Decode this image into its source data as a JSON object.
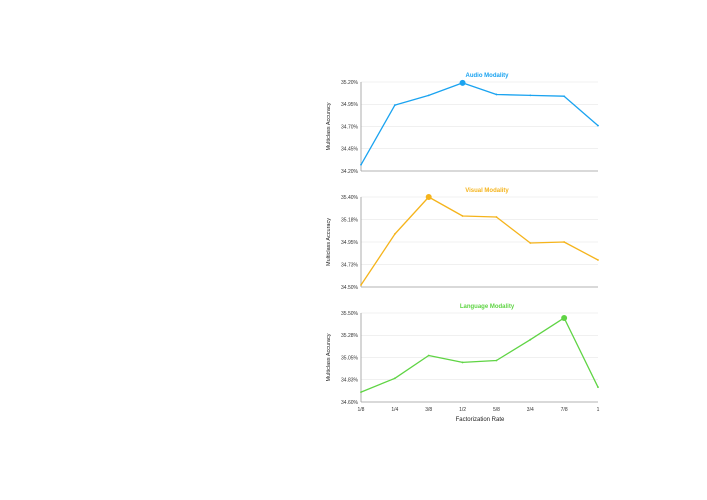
{
  "chart_data": [
    {
      "type": "line",
      "title": "Audio Modality",
      "ylabel": "Multiclass Accuracy",
      "color": "#1aa3f0",
      "yticks": [
        "35.20%",
        "34.95%",
        "34.70%",
        "34.45%",
        "34.20%"
      ],
      "ylim": [
        34.2,
        35.2
      ],
      "x": [
        "1/8",
        "1/4",
        "3/8",
        "1/2",
        "5/8",
        "3/4",
        "7/8",
        "1"
      ],
      "values": [
        34.27,
        34.94,
        35.05,
        35.19,
        35.06,
        35.05,
        35.04,
        34.71
      ],
      "highlight_index": 3
    },
    {
      "type": "line",
      "title": "Visual Modality",
      "ylabel": "Multiclass Accuracy",
      "color": "#f5b41c",
      "yticks": [
        "35.40%",
        "35.18%",
        "34.95%",
        "34.73%",
        "34.50%"
      ],
      "ylim": [
        34.5,
        35.4
      ],
      "x": [
        "1/8",
        "1/4",
        "3/8",
        "1/2",
        "5/8",
        "3/4",
        "7/8",
        "1"
      ],
      "values": [
        34.52,
        35.03,
        35.4,
        35.21,
        35.2,
        34.94,
        34.95,
        34.77
      ],
      "highlight_index": 2
    },
    {
      "type": "line",
      "title": "Language Modality",
      "ylabel": "Multiclass Accuracy",
      "color": "#5fd444",
      "yticks": [
        "35.50%",
        "35.28%",
        "35.05%",
        "34.83%",
        "34.60%"
      ],
      "ylim": [
        34.6,
        35.5
      ],
      "x": [
        "1/8",
        "1/4",
        "3/8",
        "1/2",
        "5/8",
        "3/4",
        "7/8",
        "1"
      ],
      "values": [
        34.7,
        34.84,
        35.07,
        35.0,
        35.02,
        35.23,
        35.45,
        34.75
      ],
      "highlight_index": 6
    }
  ],
  "xlabel": "Factorization Rate"
}
